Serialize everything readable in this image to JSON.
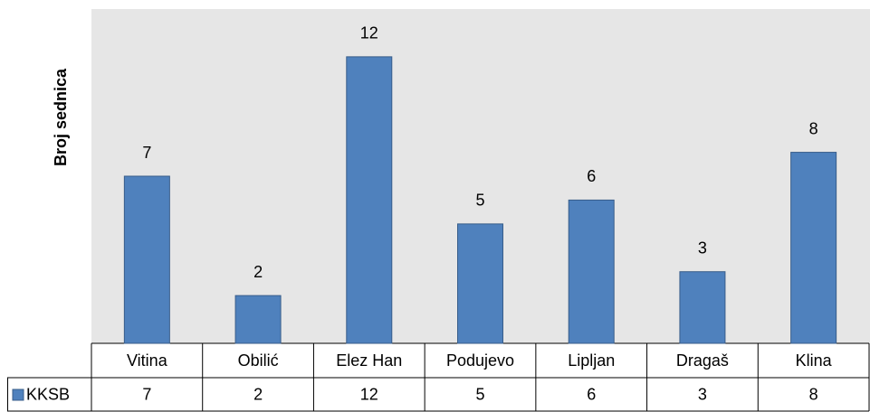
{
  "chart_data": {
    "type": "bar",
    "y_label": "Broj sednica",
    "categories": [
      "Vitina",
      "Obilić",
      "Elez Han",
      "Podujevo",
      "Lipljan",
      "Dragaš",
      "Klina"
    ],
    "series": [
      {
        "name": "KKSB",
        "color": "#4f81bd",
        "values": [
          7,
          2,
          12,
          5,
          6,
          3,
          8
        ]
      }
    ],
    "ylim": [
      0,
      14
    ],
    "data_labels": true,
    "data_table": true
  }
}
